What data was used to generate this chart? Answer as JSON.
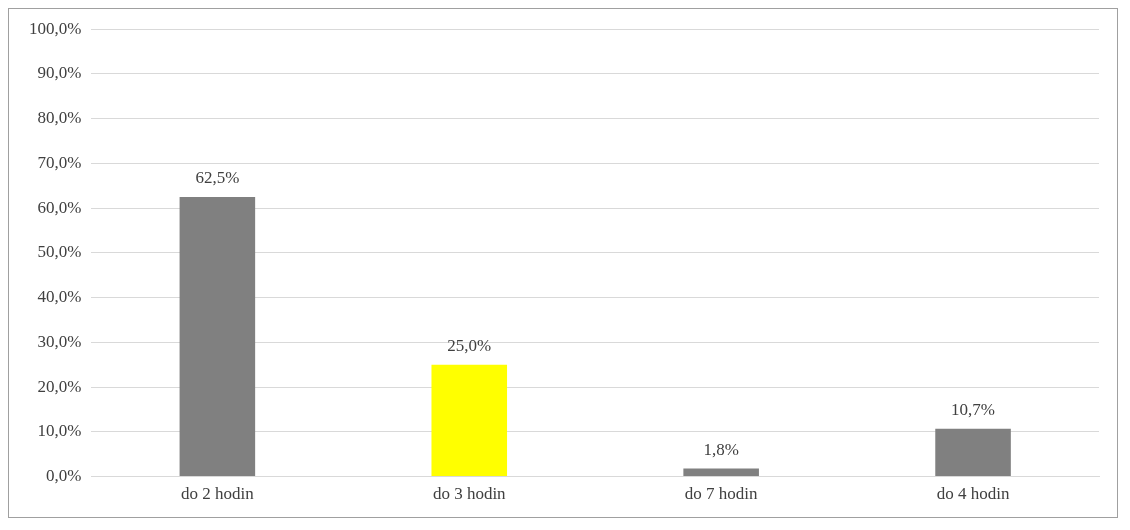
{
  "chart_data": {
    "type": "bar",
    "categories": [
      "do 2 hodin",
      "do 3 hodin",
      "do 7 hodin",
      "do 4 hodin"
    ],
    "values": [
      62.5,
      25.0,
      1.8,
      10.7
    ],
    "colors": [
      "#808080",
      "#ffff00",
      "#808080",
      "#808080"
    ],
    "value_labels": [
      "62,5%",
      "25,0%",
      "1,8%",
      "10,7%"
    ],
    "ylim": [
      0,
      100
    ],
    "yticks": [
      {
        "value": 0,
        "label": "0,0%"
      },
      {
        "value": 10,
        "label": "10,0%"
      },
      {
        "value": 20,
        "label": "20,0%"
      },
      {
        "value": 30,
        "label": "30,0%"
      },
      {
        "value": 40,
        "label": "40,0%"
      },
      {
        "value": 50,
        "label": "50,0%"
      },
      {
        "value": 60,
        "label": "60,0%"
      },
      {
        "value": 70,
        "label": "70,0%"
      },
      {
        "value": 80,
        "label": "80,0%"
      },
      {
        "value": 90,
        "label": "90,0%"
      },
      {
        "value": 100,
        "label": "100,0%"
      }
    ],
    "grid": "y",
    "legend": false
  }
}
